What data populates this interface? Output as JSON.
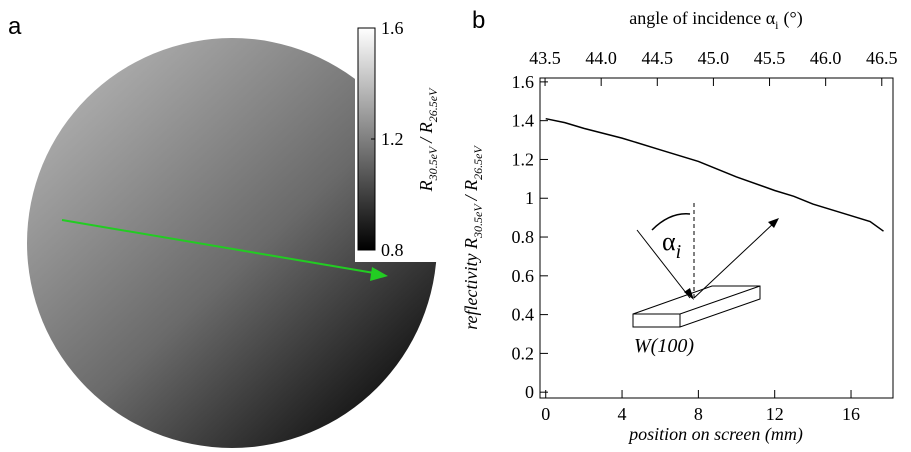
{
  "chart_data": [
    {
      "type": "image",
      "panel_label": "a",
      "colorbar_label": [
        "R",
        "30.5eV",
        "/ R",
        "26.5eV"
      ],
      "clim": [
        0.8,
        1.6
      ],
      "cticks": [
        0.8,
        1.2,
        1.6
      ]
    },
    {
      "type": "line",
      "panel_label": "b",
      "xlabel": "position on screen (mm)",
      "ylabel": [
        "reflectivity R",
        "30.5eV",
        "/ R",
        "26.5eV"
      ],
      "x2label": [
        "angle of incidence α",
        "i",
        "(°)"
      ],
      "x": [
        0,
        1,
        2,
        4,
        6,
        8,
        10,
        12,
        13,
        14,
        16,
        17,
        17.7
      ],
      "values": [
        1.41,
        1.39,
        1.36,
        1.31,
        1.25,
        1.19,
        1.11,
        1.04,
        1.01,
        0.97,
        0.91,
        0.88,
        0.83
      ],
      "color": "#000000",
      "xlim": [
        -0.3,
        18.2
      ],
      "xticks": [
        0,
        4,
        8,
        12,
        16
      ],
      "x2lim": [
        43.455,
        46.6
      ],
      "x2ticks": [
        43.5,
        {
          "value": 44,
          "label": "44.0"
        },
        44.5,
        {
          "value": 45,
          "label": "45.0"
        },
        45.5,
        {
          "value": 46,
          "label": "46.0"
        },
        46.5
      ],
      "ylim": [
        -0.03,
        1.62
      ],
      "yticks": [
        0,
        0.2,
        0.4,
        0.6,
        0.8,
        1,
        1.2,
        1.4,
        1.6
      ],
      "annotations": [
        "α",
        "i",
        "W(100)"
      ]
    }
  ]
}
